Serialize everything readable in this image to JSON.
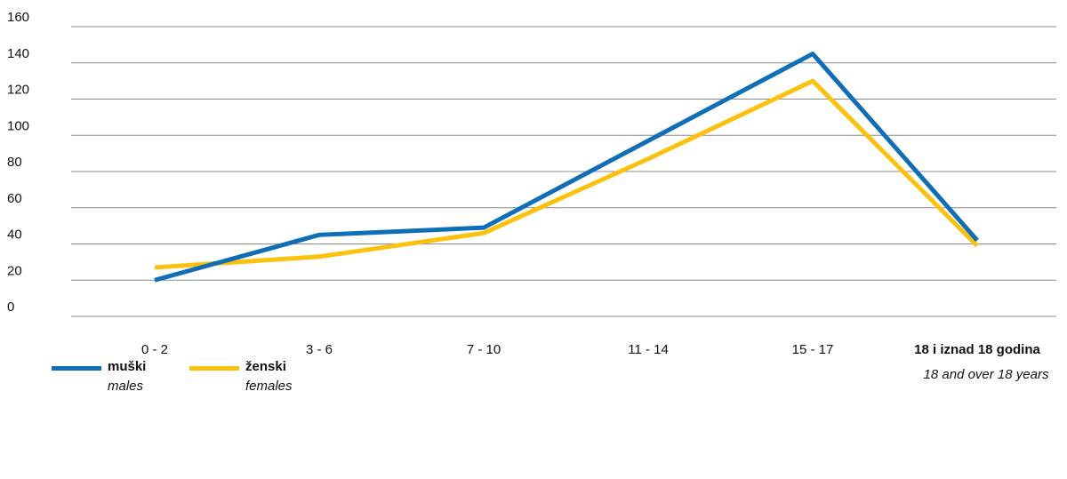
{
  "chart_data": {
    "type": "line",
    "categories": [
      {
        "label": "0 - 2",
        "sub": ""
      },
      {
        "label": "3 - 6",
        "sub": ""
      },
      {
        "label": "7 - 10",
        "sub": ""
      },
      {
        "label": "11 - 14",
        "sub": ""
      },
      {
        "label": "15 - 17",
        "sub": ""
      },
      {
        "label": "18 i iznad 18 godina",
        "sub": "18 and over 18 years",
        "bold": true
      }
    ],
    "series": [
      {
        "name": "muški",
        "name_en": "males",
        "color": "#0e6eb8",
        "values": [
          20,
          45,
          49,
          97,
          145,
          42
        ]
      },
      {
        "name": "ženski",
        "name_en": "females",
        "color": "#fcc10a",
        "values": [
          27,
          33,
          46,
          87,
          130,
          39
        ]
      }
    ],
    "yticks": [
      0,
      20,
      40,
      60,
      80,
      100,
      120,
      140,
      160
    ],
    "ylim": [
      0,
      160
    ],
    "grid": true,
    "legend_position": "bottom-left"
  }
}
